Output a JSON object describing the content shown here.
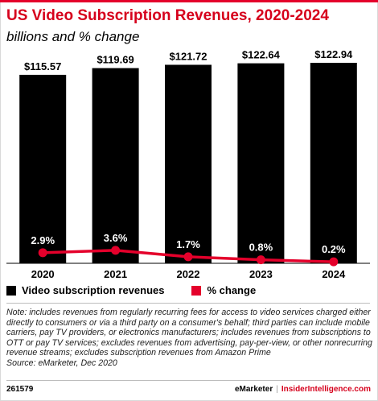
{
  "header": {
    "title": "US Video Subscription Revenues, 2020-2024",
    "subtitle": "billions and % change"
  },
  "colors": {
    "bar": "#000000",
    "line": "#e4002b",
    "title": "#d6001c"
  },
  "chart_data": {
    "type": "bar",
    "categories": [
      "2020",
      "2021",
      "2022",
      "2023",
      "2024"
    ],
    "series": [
      {
        "name": "Video subscription revenues",
        "type": "bar",
        "values": [
          115.57,
          119.69,
          121.72,
          122.64,
          122.94
        ],
        "labels": [
          "$115.57",
          "$119.69",
          "$121.72",
          "$122.64",
          "$122.94"
        ]
      },
      {
        "name": "% change",
        "type": "line",
        "values": [
          2.9,
          3.6,
          1.7,
          0.8,
          0.2
        ],
        "labels": [
          "2.9%",
          "3.6%",
          "1.7%",
          "0.8%",
          "0.2%"
        ]
      }
    ],
    "legend_position": "bottom-left",
    "grid": false
  },
  "legend": {
    "bars_label": "Video subscription revenues",
    "line_label": "% change"
  },
  "note": "Note: includes revenues from regularly recurring fees for access to video services charged either directly to consumers or via a third party on a consumer's behalf; third parties can include mobile carriers, pay TV providers, or electronics manufacturers; includes revenues from subscriptions to OTT or pay TV services; excludes revenues from advertising, pay-per-view, or other nonrecurring revenue streams; excludes subscription revenues from Amazon Prime",
  "source": "Source: eMarketer, Dec 2020",
  "footer": {
    "id": "261579",
    "brand": "eMarketer",
    "separator": "|",
    "site": "InsiderIntelligence.com"
  }
}
